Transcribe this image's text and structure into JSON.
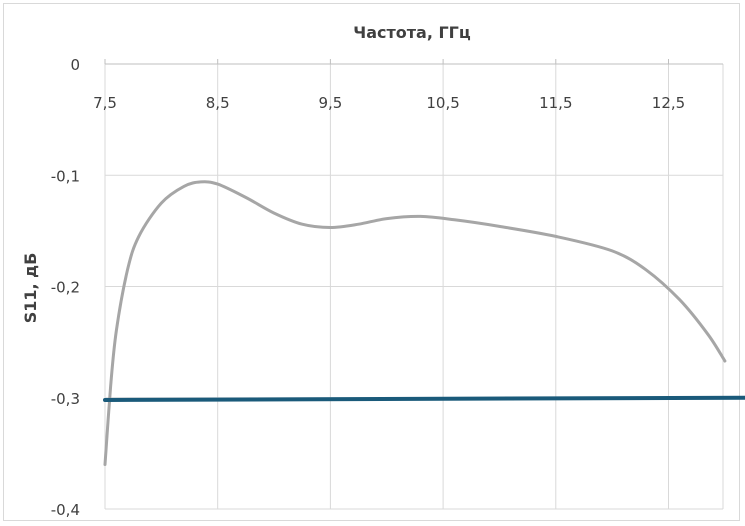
{
  "chart_data": {
    "type": "line",
    "title": "",
    "xlabel": "Частота, ГГц",
    "ylabel": "S11, дБ",
    "xlim": [
      7.5,
      13.0
    ],
    "ylim": [
      -0.4,
      0
    ],
    "x_ticks": [
      "7,5",
      "8,5",
      "9,5",
      "10,5",
      "11,5",
      "12,5"
    ],
    "x_tick_values": [
      7.5,
      8.5,
      9.5,
      10.5,
      11.5,
      12.5
    ],
    "y_ticks": [
      "0",
      "-0,1",
      "-0,2",
      "-0,3",
      "-0,4"
    ],
    "y_tick_values": [
      0,
      -0.1,
      -0.2,
      -0.3,
      -0.4
    ],
    "grid": true,
    "x_axis_position": "top",
    "series": [
      {
        "color": "#a6a6a6",
        "x": [
          7.5,
          7.55,
          7.6,
          7.7,
          7.8,
          8.0,
          8.2,
          8.35,
          8.5,
          8.75,
          9.0,
          9.25,
          9.5,
          9.75,
          10.0,
          10.3,
          10.6,
          11.0,
          11.5,
          12.0,
          12.3,
          12.6,
          12.85,
          13.0
        ],
        "y": [
          -0.36,
          -0.29,
          -0.24,
          -0.185,
          -0.155,
          -0.125,
          -0.11,
          -0.106,
          -0.108,
          -0.12,
          -0.134,
          -0.144,
          -0.147,
          -0.144,
          -0.139,
          -0.137,
          -0.14,
          -0.146,
          -0.155,
          -0.168,
          -0.185,
          -0.212,
          -0.243,
          -0.267
        ]
      },
      {
        "color": "#1a5a7a",
        "x": [
          7.5,
          13.2
        ],
        "y": [
          -0.302,
          -0.3
        ]
      }
    ]
  }
}
